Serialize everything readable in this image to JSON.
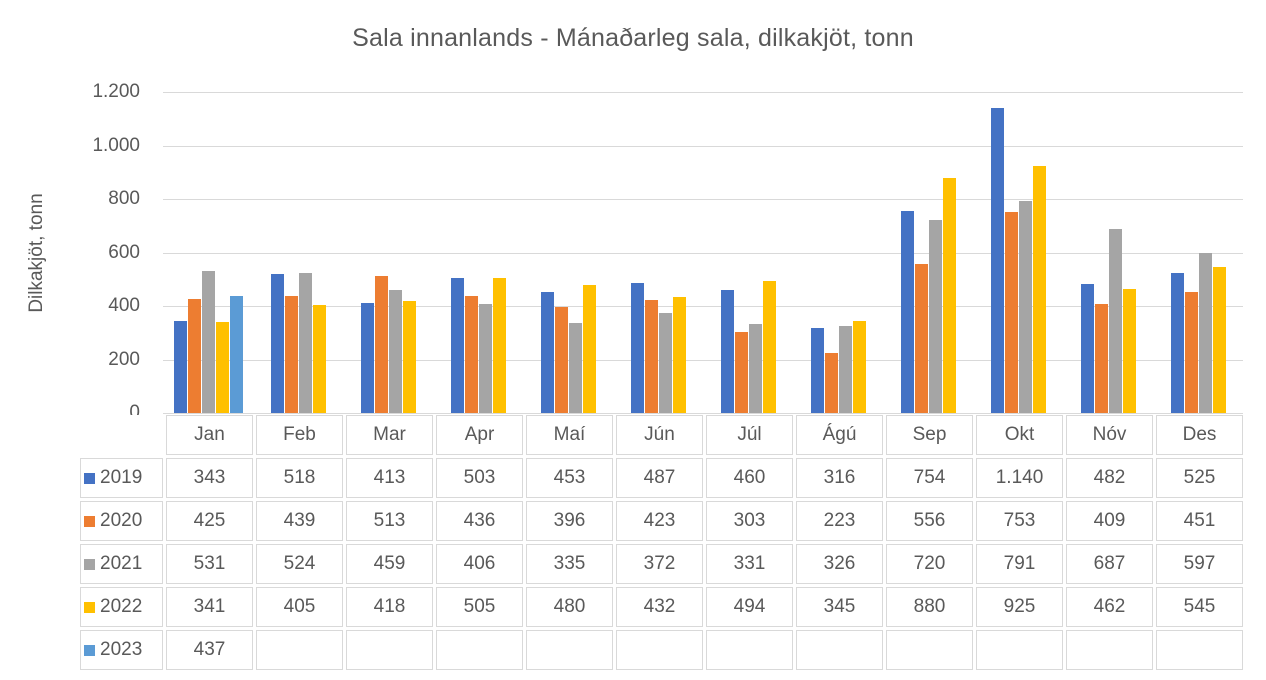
{
  "chart": {
    "title": "Sala innanlands - Mánaðarleg sala, dilkakjöt, tonn",
    "ylabel": "Dilkakjöt, tonn"
  },
  "palette": {
    "text": "#595959",
    "gridline": "#d9d9d9",
    "table_border": "#d9d9d9",
    "background": "#ffffff"
  },
  "chart_data": {
    "type": "bar",
    "title": "Sala innanlands - Mánaðarleg sala, dilkakjöt, tonn",
    "xlabel": "",
    "ylabel": "Dilkakjöt, tonn",
    "ylim": [
      0,
      1200
    ],
    "ytick_values": [
      0,
      200,
      400,
      600,
      800,
      1000,
      1200
    ],
    "ytick_labels": [
      "0",
      "200",
      "400",
      "600",
      "800",
      "1.000",
      "1.200"
    ],
    "grid": true,
    "number_format": "thousands separator '.'",
    "legend_position": "data-table-left-column",
    "categories": [
      "Jan",
      "Feb",
      "Mar",
      "Apr",
      "Maí",
      "Jún",
      "Júl",
      "Ágú",
      "Sep",
      "Okt",
      "Nóv",
      "Des"
    ],
    "series": [
      {
        "name": "2019",
        "color": "#4472C4",
        "values": [
          343,
          518,
          413,
          503,
          453,
          487,
          460,
          316,
          754,
          1140,
          482,
          525
        ]
      },
      {
        "name": "2020",
        "color": "#ED7D31",
        "values": [
          425,
          439,
          513,
          436,
          396,
          423,
          303,
          223,
          556,
          753,
          409,
          451
        ]
      },
      {
        "name": "2021",
        "color": "#A5A5A5",
        "values": [
          531,
          524,
          459,
          406,
          335,
          372,
          331,
          326,
          720,
          791,
          687,
          597
        ]
      },
      {
        "name": "2022",
        "color": "#FFC000",
        "values": [
          341,
          405,
          418,
          505,
          480,
          432,
          494,
          345,
          880,
          925,
          462,
          545
        ]
      },
      {
        "name": "2023",
        "color": "#5B9BD5",
        "values": [
          437,
          null,
          null,
          null,
          null,
          null,
          null,
          null,
          null,
          null,
          null,
          null
        ]
      }
    ]
  }
}
